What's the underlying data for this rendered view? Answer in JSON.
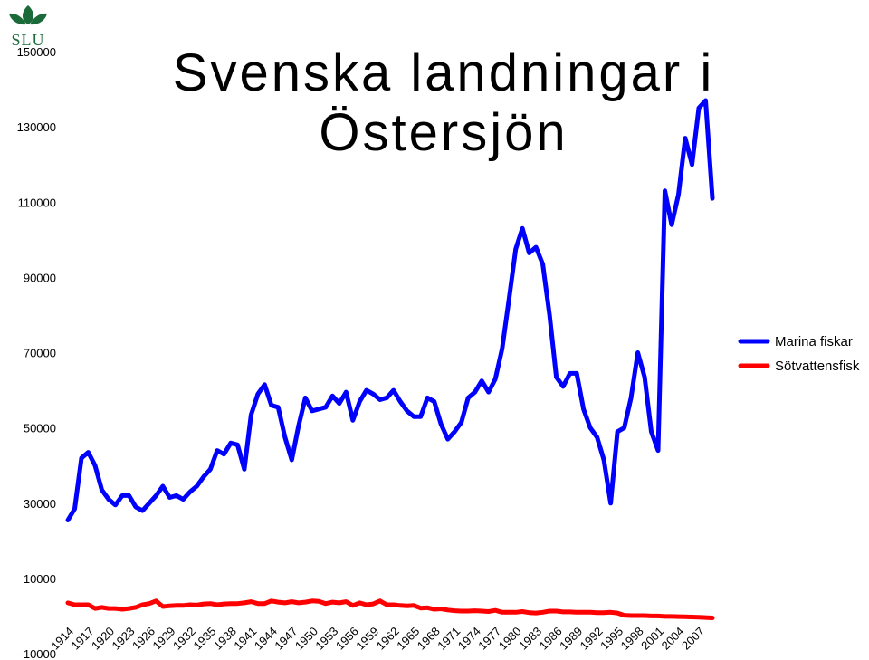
{
  "logo": {
    "text": "SLU",
    "color": "#1b6b3a"
  },
  "chart_data": {
    "type": "line",
    "title": "Svenska landningar i Östersjön",
    "title_lines": [
      "Svenska landningar i",
      "Östersjön"
    ],
    "xlabel": "",
    "ylabel": "",
    "ylim": [
      -10000,
      150000
    ],
    "y_ticks": [
      150000,
      130000,
      110000,
      90000,
      70000,
      50000,
      30000,
      10000,
      -10000
    ],
    "x_tick_labels": [
      "1914",
      "1917",
      "1920",
      "1923",
      "1926",
      "1929",
      "1932",
      "1935",
      "1938",
      "1941",
      "1944",
      "1947",
      "1950",
      "1953",
      "1956",
      "1959",
      "1962",
      "1965",
      "1968",
      "1971",
      "1974",
      "1977",
      "1980",
      "1983",
      "1986",
      "1989",
      "1992",
      "1995",
      "1998",
      "2001",
      "2004",
      "2007"
    ],
    "x": [
      1914,
      1915,
      1916,
      1917,
      1918,
      1919,
      1920,
      1921,
      1922,
      1923,
      1924,
      1925,
      1926,
      1927,
      1928,
      1929,
      1930,
      1931,
      1932,
      1933,
      1934,
      1935,
      1936,
      1937,
      1938,
      1939,
      1940,
      1941,
      1942,
      1943,
      1944,
      1945,
      1946,
      1947,
      1948,
      1949,
      1950,
      1951,
      1952,
      1953,
      1954,
      1955,
      1956,
      1957,
      1958,
      1959,
      1960,
      1961,
      1962,
      1963,
      1964,
      1965,
      1966,
      1967,
      1968,
      1969,
      1970,
      1971,
      1972,
      1973,
      1974,
      1975,
      1976,
      1977,
      1978,
      1979,
      1980,
      1981,
      1982,
      1983,
      1984,
      1985,
      1986,
      1987,
      1988,
      1989,
      1990,
      1991,
      1992,
      1993,
      1994,
      1995,
      1996,
      1997,
      1998,
      1999,
      2000,
      2001,
      2002,
      2003,
      2004,
      2005,
      2006,
      2007,
      2008,
      2009
    ],
    "grid": false,
    "legend_position": "right",
    "series": [
      {
        "name": "Marina fiskar",
        "color": "#0000ff",
        "values": [
          25500,
          28500,
          42000,
          43500,
          40000,
          33500,
          31000,
          29500,
          32000,
          32000,
          29000,
          28000,
          30000,
          32000,
          34500,
          31500,
          32000,
          31000,
          33000,
          34500,
          37000,
          39000,
          44000,
          43000,
          46000,
          45500,
          39000,
          53500,
          59000,
          61500,
          56000,
          55500,
          47500,
          41500,
          50500,
          58000,
          54500,
          55000,
          55500,
          58500,
          56500,
          59500,
          52000,
          57000,
          60000,
          59000,
          57500,
          58000,
          60000,
          57000,
          54500,
          53000,
          53000,
          58000,
          57000,
          51000,
          47000,
          49000,
          51500,
          58000,
          59500,
          62500,
          59500,
          63000,
          71000,
          84000,
          97500,
          103000,
          96500,
          98000,
          93500,
          80000,
          63500,
          61000,
          64500,
          64500,
          55000,
          50000,
          47500,
          41500,
          30000,
          49000,
          50000,
          58000,
          70000,
          63500,
          49000,
          44000,
          113000,
          104000,
          112000,
          127000,
          120000,
          135000,
          137000,
          111000
        ]
      },
      {
        "name": "Sötvattensfisk",
        "color": "#ff0000",
        "values": [
          3500,
          3000,
          3000,
          3000,
          2000,
          2300,
          2000,
          2000,
          1800,
          2000,
          2300,
          3000,
          3300,
          4000,
          2500,
          2700,
          2800,
          2800,
          3000,
          2900,
          3200,
          3300,
          3000,
          3200,
          3300,
          3300,
          3500,
          3800,
          3300,
          3300,
          4000,
          3700,
          3500,
          3800,
          3500,
          3700,
          4000,
          3900,
          3300,
          3700,
          3500,
          3800,
          2800,
          3500,
          3000,
          3200,
          4000,
          3000,
          3000,
          2800,
          2700,
          2800,
          2100,
          2200,
          1800,
          1900,
          1600,
          1400,
          1300,
          1300,
          1400,
          1300,
          1200,
          1500,
          1000,
          1000,
          1000,
          1200,
          900,
          800,
          1000,
          1300,
          1300,
          1100,
          1100,
          1000,
          1000,
          1000,
          900,
          900,
          1000,
          800,
          200,
          100,
          100,
          100,
          0,
          0,
          -100,
          -100,
          -150,
          -200,
          -250,
          -300,
          -400,
          -500
        ]
      }
    ]
  }
}
